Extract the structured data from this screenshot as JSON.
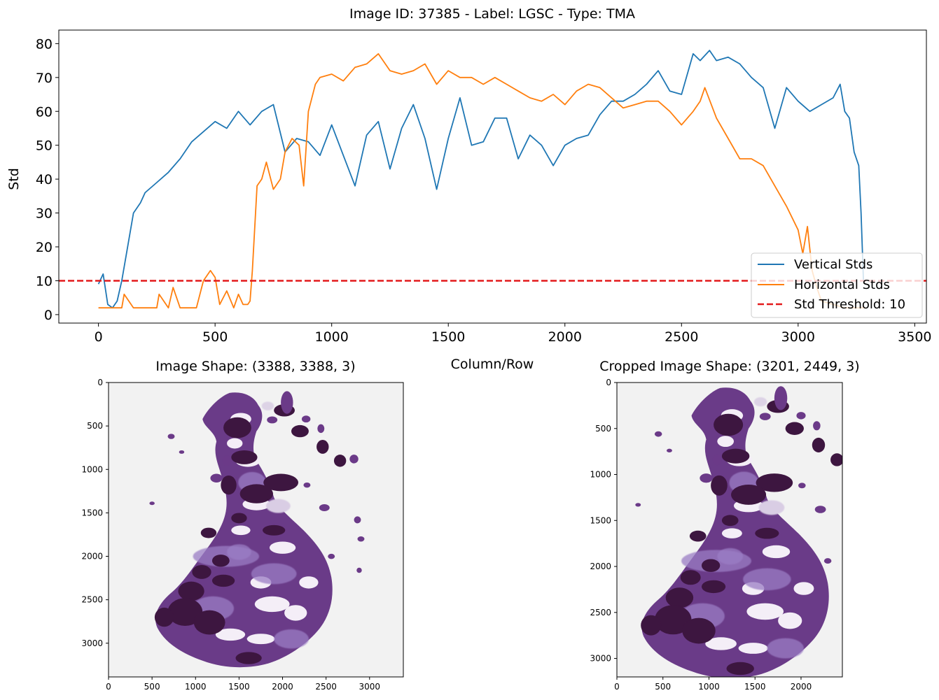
{
  "figure": {
    "suptitle": "Image ID: 37385 - Label: LGSC - Type: TMA"
  },
  "colors": {
    "vertical": "#1f77b4",
    "horizontal": "#ff7f0e",
    "threshold": "#e31a1c",
    "tissue_dark": "#3e1440",
    "tissue_mid": "#6b3a88",
    "tissue_light": "#9b7cc4",
    "slide_bg": "#f2f2f2"
  },
  "chart_data": [
    {
      "type": "line",
      "xlabel": "Column/Row",
      "ylabel": "Std",
      "xlim": [
        -170,
        3550
      ],
      "ylim": [
        -2.5,
        84
      ],
      "xticks": [
        0,
        500,
        1000,
        1500,
        2000,
        2500,
        3000,
        3500
      ],
      "yticks": [
        0,
        10,
        20,
        30,
        40,
        50,
        60,
        70,
        80
      ],
      "grid": false,
      "legend_position": "lower-right",
      "series": [
        {
          "name": "Vertical Stds",
          "x": [
            0,
            20,
            40,
            60,
            80,
            100,
            120,
            150,
            180,
            200,
            250,
            300,
            350,
            400,
            450,
            500,
            550,
            600,
            650,
            700,
            750,
            800,
            850,
            900,
            950,
            1000,
            1050,
            1100,
            1150,
            1200,
            1250,
            1300,
            1350,
            1400,
            1450,
            1500,
            1550,
            1600,
            1650,
            1700,
            1750,
            1800,
            1850,
            1900,
            1950,
            2000,
            2050,
            2100,
            2150,
            2200,
            2250,
            2300,
            2350,
            2400,
            2450,
            2500,
            2550,
            2580,
            2620,
            2650,
            2700,
            2750,
            2800,
            2850,
            2900,
            2950,
            3000,
            3050,
            3100,
            3150,
            3180,
            3200,
            3220,
            3240,
            3260,
            3270,
            3280
          ],
          "y": [
            9,
            12,
            3,
            2,
            4,
            10,
            18,
            30,
            33,
            36,
            39,
            42,
            46,
            51,
            54,
            57,
            55,
            60,
            56,
            60,
            62,
            48,
            52,
            51,
            47,
            56,
            47,
            38,
            53,
            57,
            43,
            55,
            62,
            52,
            37,
            52,
            64,
            50,
            51,
            58,
            58,
            46,
            53,
            50,
            44,
            50,
            52,
            53,
            59,
            63,
            63,
            65,
            68,
            72,
            66,
            65,
            77,
            75,
            78,
            75,
            76,
            74,
            70,
            67,
            55,
            67,
            63,
            60,
            62,
            64,
            68,
            60,
            58,
            48,
            44,
            30,
            10
          ]
        },
        {
          "name": "Horizontal Stds",
          "x": [
            0,
            50,
            100,
            110,
            150,
            200,
            250,
            260,
            300,
            320,
            350,
            400,
            420,
            450,
            480,
            500,
            520,
            550,
            580,
            600,
            620,
            640,
            650,
            660,
            680,
            700,
            720,
            750,
            780,
            800,
            830,
            860,
            880,
            900,
            930,
            950,
            1000,
            1050,
            1100,
            1150,
            1200,
            1250,
            1300,
            1350,
            1400,
            1450,
            1500,
            1550,
            1600,
            1650,
            1700,
            1750,
            1800,
            1850,
            1900,
            1950,
            2000,
            2050,
            2100,
            2150,
            2200,
            2250,
            2300,
            2350,
            2400,
            2450,
            2500,
            2550,
            2580,
            2600,
            2650,
            2700,
            2750,
            2800,
            2850,
            2900,
            2950,
            3000,
            3020,
            3040,
            3060,
            3080,
            3100,
            3150,
            3200,
            3250,
            3290
          ],
          "y": [
            2,
            2,
            2,
            6,
            2,
            2,
            2,
            6,
            2,
            8,
            2,
            2,
            2,
            10,
            13,
            11,
            3,
            7,
            2,
            6,
            3,
            3,
            4,
            13,
            38,
            40,
            45,
            37,
            40,
            48,
            52,
            50,
            38,
            60,
            68,
            70,
            71,
            69,
            73,
            74,
            77,
            72,
            71,
            72,
            74,
            68,
            72,
            70,
            70,
            68,
            70,
            68,
            66,
            64,
            63,
            65,
            62,
            66,
            68,
            67,
            64,
            61,
            62,
            63,
            63,
            60,
            56,
            60,
            63,
            67,
            58,
            52,
            46,
            46,
            44,
            38,
            32,
            25,
            18,
            26,
            13,
            8,
            4,
            3,
            2,
            2,
            2
          ]
        },
        {
          "name": "Std Threshold: 10",
          "x": [
            -170,
            3550
          ],
          "y": [
            10,
            10
          ]
        }
      ]
    },
    {
      "type": "heatmap",
      "title": "Image Shape: (3388, 3388, 3)",
      "xlim": [
        0,
        3388
      ],
      "ylim": [
        3388,
        0
      ],
      "xticks": [
        0,
        500,
        1000,
        1500,
        2000,
        2500,
        3000
      ],
      "yticks": [
        0,
        500,
        1000,
        1500,
        2000,
        2500,
        3000
      ]
    },
    {
      "type": "heatmap",
      "title": "Cropped Image Shape: (3201, 2449, 3)",
      "xlim": [
        0,
        2449
      ],
      "ylim": [
        3201,
        0
      ],
      "xticks": [
        0,
        500,
        1000,
        1500,
        2000
      ],
      "yticks": [
        0,
        500,
        1000,
        1500,
        2000,
        2500,
        3000
      ]
    }
  ]
}
